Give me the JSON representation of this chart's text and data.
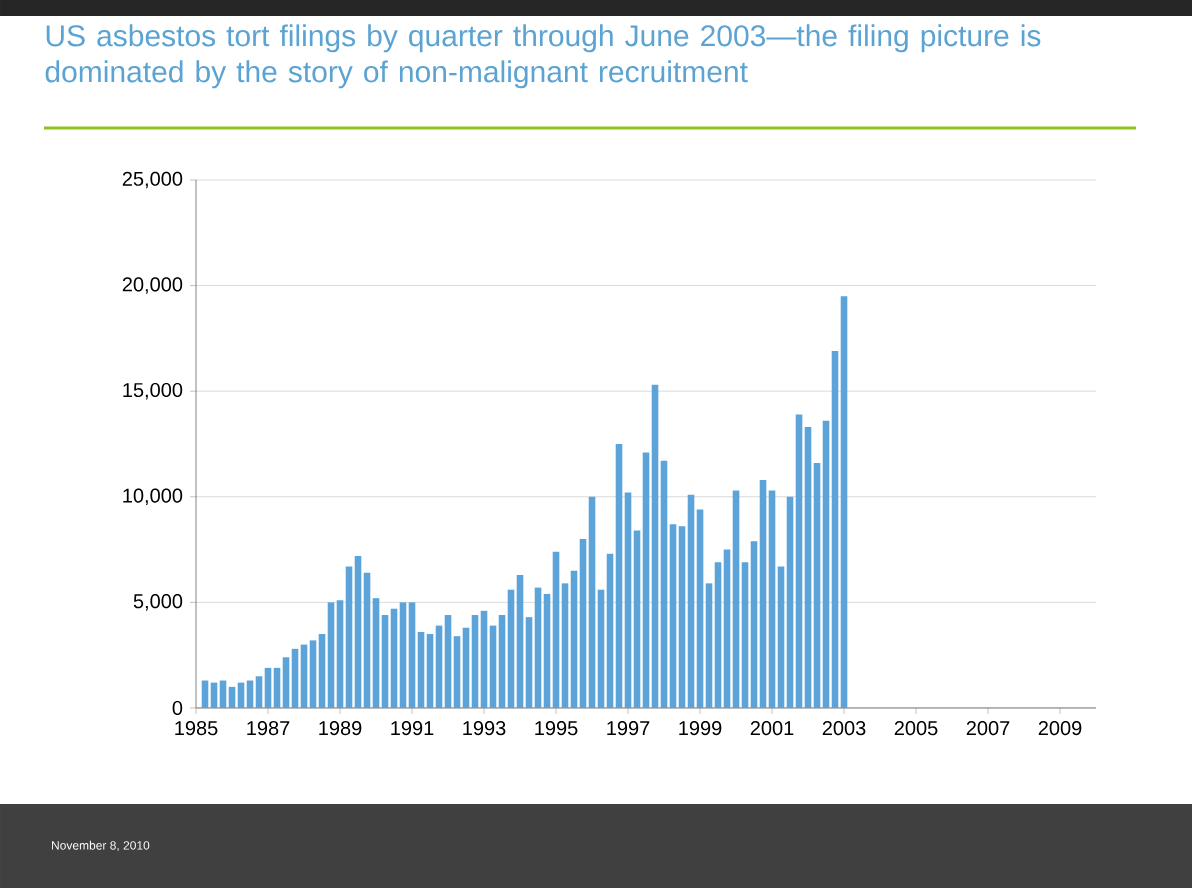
{
  "chart_data": {
    "type": "bar",
    "title": "US asbestos tort filings by quarter through June 2003—the filing picture is dominated by the story of non-malignant recruitment",
    "x": [
      1985.25,
      1985.5,
      1985.75,
      1986,
      1986.25,
      1986.5,
      1986.75,
      1987,
      1987.25,
      1987.5,
      1987.75,
      1988,
      1988.25,
      1988.5,
      1988.75,
      1989,
      1989.25,
      1989.5,
      1989.75,
      1990,
      1990.25,
      1990.5,
      1990.75,
      1991,
      1991.25,
      1991.5,
      1991.75,
      1992,
      1992.25,
      1992.5,
      1992.75,
      1993,
      1993.25,
      1993.5,
      1993.75,
      1994,
      1994.25,
      1994.5,
      1994.75,
      1995,
      1995.25,
      1995.5,
      1995.75,
      1996,
      1996.25,
      1996.5,
      1996.75,
      1997,
      1997.25,
      1997.5,
      1997.75,
      1998,
      1998.25,
      1998.5,
      1998.75,
      1999,
      1999.25,
      1999.5,
      1999.75,
      2000,
      2000.25,
      2000.5,
      2000.75,
      2001,
      2001.25,
      2001.5,
      2001.75,
      2002,
      2002.25,
      2002.5,
      2002.75,
      2003
    ],
    "values": [
      1300,
      1200,
      1300,
      1000,
      1200,
      1300,
      1500,
      1900,
      1900,
      2400,
      2800,
      3000,
      3200,
      3500,
      5000,
      5100,
      6700,
      7200,
      6400,
      5200,
      4400,
      4700,
      5000,
      5000,
      3600,
      3500,
      3900,
      4400,
      3400,
      3800,
      4400,
      4600,
      3900,
      4400,
      5600,
      6300,
      4300,
      5700,
      5400,
      7400,
      5900,
      6500,
      8000,
      10000,
      5600,
      7300,
      12500,
      10200,
      8400,
      12100,
      15300,
      11700,
      8700,
      8600,
      10100,
      9400,
      5900,
      6900,
      7500,
      10300,
      6900,
      7900,
      10800,
      10300,
      6700,
      10000,
      13900,
      13300,
      11600,
      13600,
      16900,
      19500
    ],
    "color": "#5ba3d9",
    "xlim": [
      1985,
      2010
    ],
    "xticks": [
      1985,
      1987,
      1989,
      1991,
      1993,
      1995,
      1997,
      1999,
      2001,
      2003,
      2005,
      2007,
      2009
    ],
    "ylim": [
      0,
      25000
    ],
    "yticks": [
      0,
      {
        "value": 5000,
        "label": "5,000"
      },
      {
        "value": 10000,
        "label": "10,000"
      },
      {
        "value": 15000,
        "label": "15,000"
      },
      {
        "value": 20000,
        "label": "20,000"
      },
      {
        "value": 25000,
        "label": "25,000"
      }
    ],
    "grid": "y",
    "annotations": [
      "November 8, 2010"
    ]
  }
}
